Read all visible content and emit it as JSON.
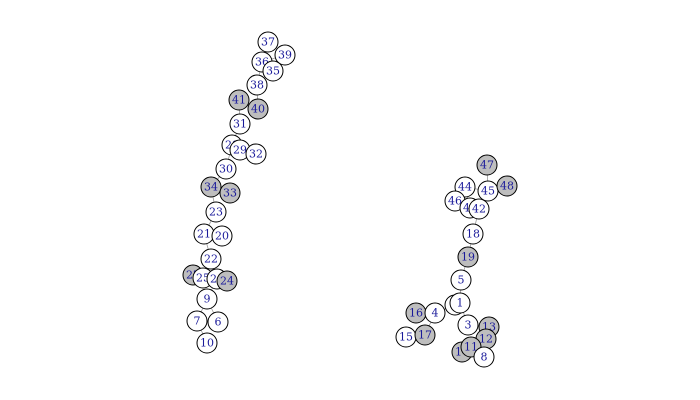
{
  "colors": {
    "white_fill": "#ffffff",
    "gray_fill": "#bebebe",
    "stroke": "#000000",
    "label": "#1a1a9a",
    "edge": "#9a9a9a"
  },
  "nodes": [
    {
      "id": "37",
      "fill": "white"
    },
    {
      "id": "39",
      "fill": "white"
    },
    {
      "id": "36",
      "fill": "white"
    },
    {
      "id": "35",
      "fill": "white"
    },
    {
      "id": "38",
      "fill": "white"
    },
    {
      "id": "41",
      "fill": "gray"
    },
    {
      "id": "40",
      "fill": "gray"
    },
    {
      "id": "31",
      "fill": "white"
    },
    {
      "id": "28",
      "fill": "white"
    },
    {
      "id": "29",
      "fill": "white"
    },
    {
      "id": "32",
      "fill": "white"
    },
    {
      "id": "30",
      "fill": "white"
    },
    {
      "id": "34",
      "fill": "gray"
    },
    {
      "id": "33",
      "fill": "gray"
    },
    {
      "id": "23",
      "fill": "white"
    },
    {
      "id": "21",
      "fill": "white"
    },
    {
      "id": "20",
      "fill": "white"
    },
    {
      "id": "22",
      "fill": "white"
    },
    {
      "id": "27",
      "fill": "gray"
    },
    {
      "id": "25",
      "fill": "white"
    },
    {
      "id": "26",
      "fill": "white"
    },
    {
      "id": "24",
      "fill": "gray"
    },
    {
      "id": "9",
      "fill": "white"
    },
    {
      "id": "7",
      "fill": "white"
    },
    {
      "id": "6",
      "fill": "white"
    },
    {
      "id": "10",
      "fill": "white"
    },
    {
      "id": "47",
      "fill": "gray"
    },
    {
      "id": "44",
      "fill": "white"
    },
    {
      "id": "45",
      "fill": "white"
    },
    {
      "id": "48",
      "fill": "gray"
    },
    {
      "id": "46",
      "fill": "white"
    },
    {
      "id": "43",
      "fill": "white"
    },
    {
      "id": "42",
      "fill": "white"
    },
    {
      "id": "18",
      "fill": "white"
    },
    {
      "id": "19",
      "fill": "gray"
    },
    {
      "id": "5",
      "fill": "white"
    },
    {
      "id": "2",
      "fill": "white"
    },
    {
      "id": "1",
      "fill": "white"
    },
    {
      "id": "16",
      "fill": "gray"
    },
    {
      "id": "4",
      "fill": "white"
    },
    {
      "id": "15",
      "fill": "white"
    },
    {
      "id": "17",
      "fill": "gray"
    },
    {
      "id": "3",
      "fill": "white"
    },
    {
      "id": "13",
      "fill": "gray"
    },
    {
      "id": "12",
      "fill": "gray"
    },
    {
      "id": "14",
      "fill": "gray"
    },
    {
      "id": "11",
      "fill": "gray"
    },
    {
      "id": "8",
      "fill": "white"
    }
  ],
  "edges": [
    [
      "37",
      "36"
    ],
    [
      "39",
      "36"
    ],
    [
      "36",
      "35"
    ],
    [
      "36",
      "38"
    ],
    [
      "38",
      "40"
    ],
    [
      "40",
      "41"
    ],
    [
      "41",
      "31"
    ],
    [
      "31",
      "28"
    ],
    [
      "28",
      "29"
    ],
    [
      "29",
      "32"
    ],
    [
      "28",
      "30"
    ],
    [
      "30",
      "34"
    ],
    [
      "34",
      "33"
    ],
    [
      "34",
      "23"
    ],
    [
      "23",
      "21"
    ],
    [
      "21",
      "20"
    ],
    [
      "21",
      "22"
    ],
    [
      "22",
      "25"
    ],
    [
      "25",
      "27"
    ],
    [
      "25",
      "26"
    ],
    [
      "26",
      "24"
    ],
    [
      "26",
      "9"
    ],
    [
      "9",
      "7"
    ],
    [
      "9",
      "6"
    ],
    [
      "7",
      "10"
    ],
    [
      "47",
      "45"
    ],
    [
      "44",
      "45"
    ],
    [
      "45",
      "48"
    ],
    [
      "44",
      "46"
    ],
    [
      "44",
      "43"
    ],
    [
      "43",
      "42"
    ],
    [
      "42",
      "18"
    ],
    [
      "18",
      "19"
    ],
    [
      "19",
      "5"
    ],
    [
      "5",
      "1"
    ],
    [
      "2",
      "1"
    ],
    [
      "2",
      "4"
    ],
    [
      "4",
      "16"
    ],
    [
      "4",
      "17"
    ],
    [
      "17",
      "15"
    ],
    [
      "1",
      "3"
    ],
    [
      "3",
      "13"
    ],
    [
      "13",
      "12"
    ],
    [
      "12",
      "11"
    ],
    [
      "11",
      "14"
    ],
    [
      "11",
      "8"
    ]
  ]
}
